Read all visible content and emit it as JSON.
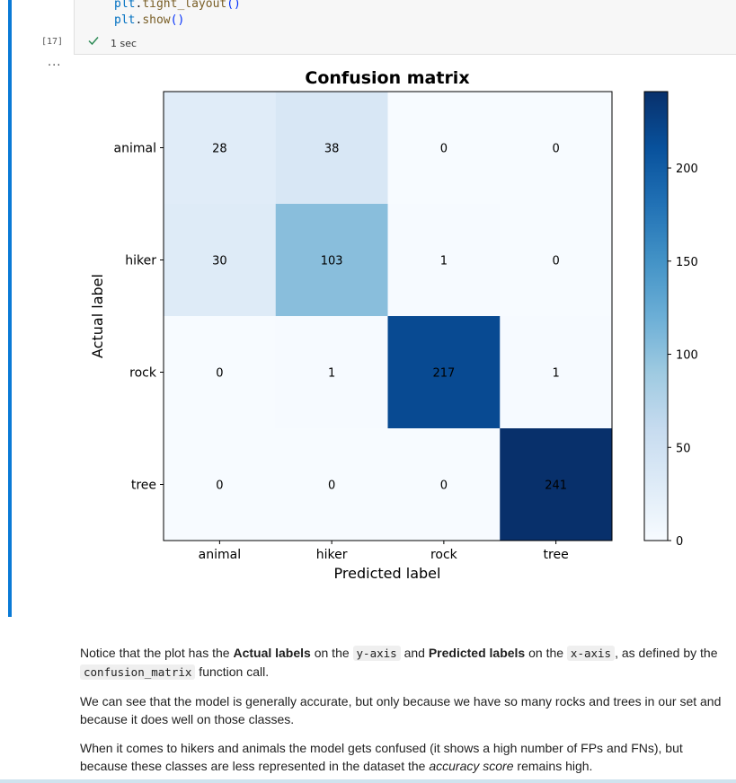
{
  "notebook": {
    "code_lines": [
      {
        "obj": "plt",
        "dot": ".",
        "fn": "tight_layout",
        "parens": "()"
      },
      {
        "obj": "plt",
        "dot": ".",
        "fn": "show",
        "parens": "()"
      }
    ],
    "execution_count": "[17]",
    "elapsed": "1 sec",
    "output_menu": "...",
    "status_icon": "check-icon",
    "colors": {
      "active_bar": "#0a7ad6",
      "success": "#2e8b57"
    }
  },
  "chart_data": {
    "type": "heatmap",
    "title": "Confusion matrix",
    "xlabel": "Predicted label",
    "ylabel": "Actual label",
    "x_categories": [
      "animal",
      "hiker",
      "rock",
      "tree"
    ],
    "y_categories": [
      "animal",
      "hiker",
      "rock",
      "tree"
    ],
    "values": [
      [
        28,
        38,
        0,
        0
      ],
      [
        30,
        103,
        1,
        0
      ],
      [
        0,
        1,
        217,
        1
      ],
      [
        0,
        0,
        0,
        241
      ]
    ],
    "colormap": "Blues",
    "vmin": 0,
    "vmax": 241,
    "colorbar_ticks": [
      0,
      50,
      100,
      150,
      200
    ],
    "text_threshold": 120.5,
    "text_colors": {
      "light": "#ffffff",
      "dark": "#000000"
    }
  },
  "markdown": {
    "p1": {
      "t1": "Notice that the plot has the ",
      "b1": "Actual labels",
      "t2": " on the ",
      "c1": "y-axis",
      "t3": " and ",
      "b2": "Predicted labels",
      "t4": " on the ",
      "c2": "x-axis",
      "t5": ", as defined by the ",
      "c3": "confusion_matrix",
      "t6": " function call."
    },
    "p2": "We can see that the model is generally accurate, but only because we have so many rocks and trees in our set and because it does well on those classes.",
    "p3": {
      "t1": "When it comes to hikers and animals the model gets confused (it shows a high number of FPs and FNs), but because these classes are less represented in the dataset the ",
      "i1": "accuracy score",
      "t2": " remains high."
    }
  }
}
